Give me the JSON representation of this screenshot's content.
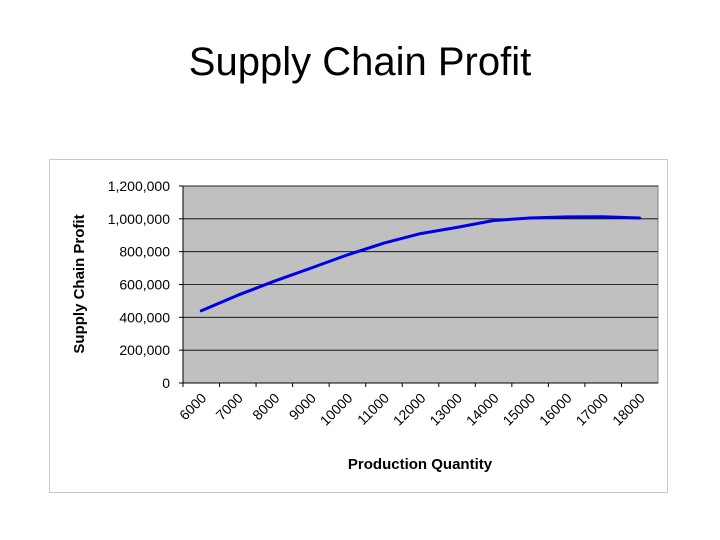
{
  "slide": {
    "title": "Supply Chain Profit"
  },
  "colors": {
    "plot_background": "#c0c0c0",
    "line": "#0000e6",
    "gridline": "#000000"
  },
  "chart_data": {
    "type": "line",
    "title": "",
    "xlabel": "Production Quantity",
    "ylabel": "Supply Chain Profit",
    "categories": [
      "6000",
      "7000",
      "8000",
      "9000",
      "10000",
      "11000",
      "12000",
      "13000",
      "14000",
      "15000",
      "16000",
      "17000",
      "18000"
    ],
    "y_tick_labels": [
      "0",
      "200,000",
      "400,000",
      "600,000",
      "800,000",
      "1,000,000",
      "1,200,000"
    ],
    "ylim": [
      0,
      1200000
    ],
    "grid": true,
    "legend": "none",
    "series": [
      {
        "values": [
          440000,
          535000,
          620000,
          700000,
          780000,
          852000,
          910000,
          948000,
          990000,
          1005000,
          1012000,
          1013000,
          1005000
        ]
      }
    ]
  }
}
